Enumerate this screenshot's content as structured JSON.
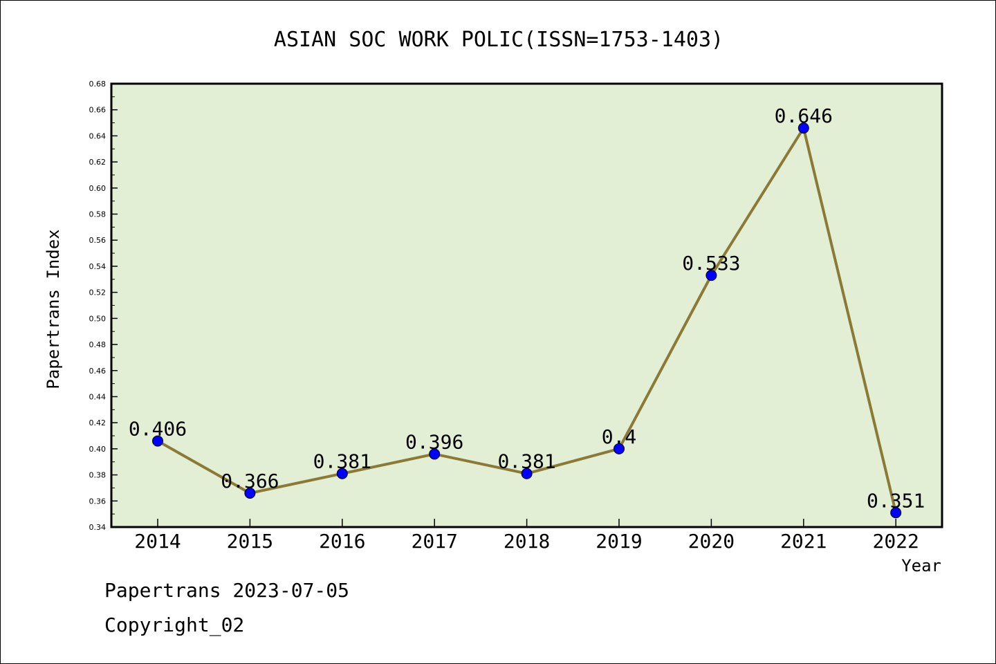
{
  "chart_data": {
    "type": "line",
    "title": "ASIAN SOC WORK POLIC(ISSN=1753-1403)",
    "xlabel": "Year",
    "ylabel": "Papertrans Index",
    "categories": [
      "2014",
      "2015",
      "2016",
      "2017",
      "2018",
      "2019",
      "2020",
      "2021",
      "2022"
    ],
    "values": [
      0.406,
      0.366,
      0.381,
      0.396,
      0.381,
      0.4,
      0.533,
      0.646,
      0.351
    ],
    "point_labels": [
      "0.406",
      "0.366",
      "0.381",
      "0.396",
      "0.381",
      "0.4",
      "0.533",
      "0.646",
      "0.351"
    ],
    "ylim": [
      0.34,
      0.68
    ],
    "yticks": [
      "0.34",
      "0.36",
      "0.38",
      "0.40",
      "0.42",
      "0.44",
      "0.46",
      "0.48",
      "0.50",
      "0.52",
      "0.54",
      "0.56",
      "0.58",
      "0.60",
      "0.62",
      "0.64",
      "0.66",
      "0.68"
    ],
    "grid": false,
    "colors": {
      "plot_background": "#e2efd5",
      "line": "#8b7a35",
      "marker": "#0000ff"
    }
  },
  "footer": {
    "date_line": "Papertrans 2023-07-05",
    "copyright": "Copyright_02"
  }
}
